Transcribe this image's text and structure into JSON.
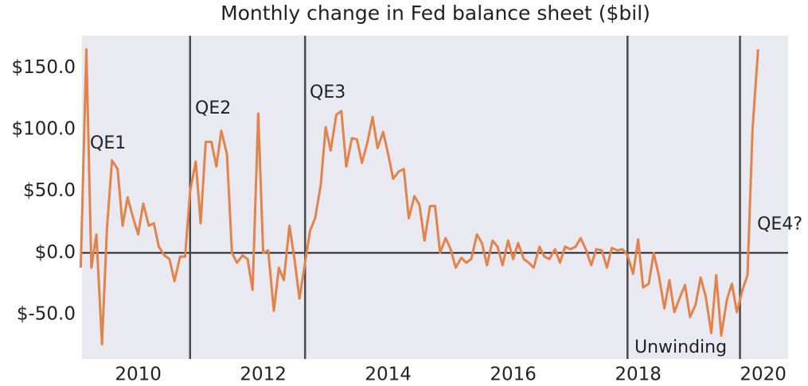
{
  "chart_data": {
    "type": "line",
    "title": "Monthly change in Fed balance sheet ($bil)",
    "x": [
      2009.08,
      2009.17,
      2009.25,
      2009.33,
      2009.42,
      2009.5,
      2009.58,
      2009.67,
      2009.75,
      2009.83,
      2009.92,
      2010.0,
      2010.08,
      2010.17,
      2010.25,
      2010.33,
      2010.42,
      2010.5,
      2010.58,
      2010.67,
      2010.75,
      2010.83,
      2010.92,
      2011.0,
      2011.08,
      2011.17,
      2011.25,
      2011.33,
      2011.42,
      2011.5,
      2011.58,
      2011.67,
      2011.75,
      2011.83,
      2011.92,
      2012.0,
      2012.08,
      2012.17,
      2012.25,
      2012.33,
      2012.42,
      2012.5,
      2012.58,
      2012.67,
      2012.75,
      2012.83,
      2012.92,
      2013.0,
      2013.08,
      2013.17,
      2013.25,
      2013.33,
      2013.42,
      2013.5,
      2013.58,
      2013.67,
      2013.75,
      2013.83,
      2013.92,
      2014.0,
      2014.08,
      2014.17,
      2014.25,
      2014.33,
      2014.42,
      2014.5,
      2014.58,
      2014.67,
      2014.75,
      2014.83,
      2014.92,
      2015.0,
      2015.08,
      2015.17,
      2015.25,
      2015.33,
      2015.42,
      2015.5,
      2015.58,
      2015.67,
      2015.75,
      2015.83,
      2015.92,
      2016.0,
      2016.08,
      2016.17,
      2016.25,
      2016.33,
      2016.42,
      2016.5,
      2016.58,
      2016.67,
      2016.75,
      2016.83,
      2016.92,
      2017.0,
      2017.08,
      2017.17,
      2017.25,
      2017.33,
      2017.42,
      2017.5,
      2017.58,
      2017.67,
      2017.75,
      2017.83,
      2017.92,
      2018.0,
      2018.08,
      2018.17,
      2018.25,
      2018.33,
      2018.42,
      2018.5,
      2018.58,
      2018.67,
      2018.75,
      2018.83,
      2018.92,
      2019.0,
      2019.08,
      2019.17,
      2019.25,
      2019.33,
      2019.42,
      2019.5,
      2019.58,
      2019.67,
      2019.75,
      2019.83,
      2019.92
    ],
    "series": [
      {
        "color": "#e2834b",
        "values": [
          -12,
          165,
          -12,
          15,
          -74,
          20,
          75,
          68,
          22,
          45,
          28,
          15,
          40,
          22,
          24,
          5,
          -2,
          -5,
          -23,
          -3,
          -3,
          50,
          74,
          24,
          90,
          90,
          70,
          99,
          80,
          0,
          -8,
          -2,
          -5,
          -30,
          113,
          0,
          2,
          -47,
          -12,
          -22,
          22,
          -5,
          -37,
          -8,
          18,
          28,
          55,
          102,
          83,
          112,
          115,
          70,
          93,
          92,
          73,
          90,
          110,
          85,
          98,
          80,
          60,
          66,
          68,
          28,
          46,
          39,
          10,
          38,
          38,
          0,
          12,
          3,
          -12,
          -4,
          -8,
          -5,
          15,
          8,
          -10,
          10,
          5,
          -10,
          10,
          -5,
          8,
          -5,
          -8,
          -12,
          5,
          -3,
          -5,
          3,
          -8,
          5,
          3,
          5,
          12,
          2,
          -10,
          3,
          2,
          -12,
          4,
          2,
          3,
          -2,
          -17,
          11,
          -28,
          -25,
          0,
          -18,
          -45,
          -22,
          -48,
          -36,
          -26,
          -52,
          -42,
          -20,
          -35,
          -65,
          -18,
          -67,
          -38,
          -25,
          -48,
          -30,
          -18,
          100,
          165
        ]
      }
    ],
    "event_lines": [
      2010.83,
      2012.67,
      2017.83,
      2019.63
    ],
    "annotations": [
      "QE1",
      "QE2",
      "QE3",
      "Unwinding",
      "QE4?"
    ],
    "xlim": [
      2009.1,
      2020.4
    ],
    "xticks": [
      2010,
      2012,
      2014,
      2016,
      2018,
      2020
    ],
    "ylim": [
      -86,
      176
    ],
    "yticks": [
      {
        "value": -50,
        "label": "$-50.0"
      },
      {
        "value": 0,
        "label": "$0.0"
      },
      {
        "value": 50,
        "label": "$50.0"
      },
      {
        "value": 100,
        "label": "$100.0"
      },
      {
        "value": 150,
        "label": "$150.0"
      }
    ],
    "grid": false
  }
}
